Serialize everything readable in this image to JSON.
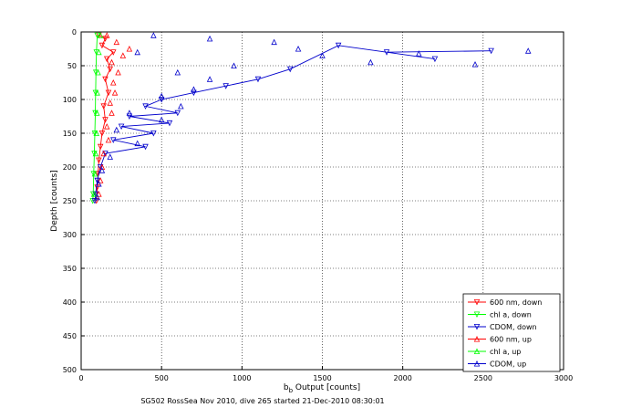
{
  "chart_data": {
    "type": "scatter",
    "title": "",
    "xlabel_main": "b",
    "xlabel_sub": "b",
    "xlabel_rest": " Output [counts]",
    "ylabel": "Depth [counts]",
    "caption": "SG502 RossSea Nov 2010, dive 265 started 21-Dec-2010 08:30:01",
    "xlim": [
      0,
      3000
    ],
    "ylim": [
      500,
      0
    ],
    "y_reversed": true,
    "xticks": [
      0,
      500,
      1000,
      1500,
      2000,
      2500,
      3000
    ],
    "yticks": [
      0,
      50,
      100,
      150,
      200,
      250,
      300,
      350,
      400,
      450,
      500
    ],
    "grid": "dotted",
    "legend_position": "bottom-right",
    "series": [
      {
        "name": "600 nm, down",
        "color": "#ff0000",
        "marker": "triangle-down",
        "connected": true,
        "points": [
          [
            110,
            5
          ],
          [
            150,
            10
          ],
          [
            130,
            20
          ],
          [
            200,
            30
          ],
          [
            160,
            40
          ],
          [
            180,
            55
          ],
          [
            150,
            70
          ],
          [
            170,
            90
          ],
          [
            140,
            110
          ],
          [
            150,
            130
          ],
          [
            130,
            150
          ],
          [
            120,
            170
          ],
          [
            110,
            190
          ],
          [
            105,
            210
          ],
          [
            100,
            230
          ],
          [
            95,
            250
          ]
        ]
      },
      {
        "name": "chl a, down",
        "color": "#00ff00",
        "marker": "triangle-down",
        "connected": true,
        "points": [
          [
            100,
            5
          ],
          [
            95,
            30
          ],
          [
            92,
            60
          ],
          [
            90,
            90
          ],
          [
            88,
            120
          ],
          [
            85,
            150
          ],
          [
            82,
            180
          ],
          [
            78,
            210
          ],
          [
            75,
            240
          ],
          [
            72,
            250
          ]
        ]
      },
      {
        "name": "CDOM, down",
        "color": "#0000cc",
        "marker": "triangle-down",
        "connected": true,
        "points": [
          [
            2550,
            28
          ],
          [
            1900,
            30
          ],
          [
            2200,
            40
          ],
          [
            1600,
            20
          ],
          [
            1300,
            55
          ],
          [
            1100,
            70
          ],
          [
            900,
            80
          ],
          [
            700,
            90
          ],
          [
            500,
            100
          ],
          [
            400,
            110
          ],
          [
            600,
            120
          ],
          [
            300,
            125
          ],
          [
            550,
            135
          ],
          [
            250,
            140
          ],
          [
            450,
            150
          ],
          [
            200,
            160
          ],
          [
            400,
            170
          ],
          [
            150,
            180
          ],
          [
            120,
            200
          ],
          [
            100,
            220
          ],
          [
            90,
            240
          ],
          [
            85,
            250
          ]
        ]
      },
      {
        "name": "600 nm, up",
        "color": "#ff0000",
        "marker": "triangle-up",
        "connected": false,
        "points": [
          [
            160,
            5
          ],
          [
            220,
            15
          ],
          [
            300,
            25
          ],
          [
            260,
            35
          ],
          [
            190,
            45
          ],
          [
            230,
            60
          ],
          [
            200,
            75
          ],
          [
            210,
            90
          ],
          [
            180,
            105
          ],
          [
            190,
            120
          ],
          [
            160,
            140
          ],
          [
            170,
            160
          ],
          [
            140,
            180
          ],
          [
            130,
            200
          ],
          [
            120,
            220
          ],
          [
            110,
            240
          ]
        ]
      },
      {
        "name": "chl a, up",
        "color": "#00ff00",
        "marker": "triangle-up",
        "connected": false,
        "points": [
          [
            120,
            5
          ],
          [
            110,
            30
          ],
          [
            105,
            60
          ],
          [
            100,
            90
          ],
          [
            98,
            120
          ],
          [
            95,
            150
          ],
          [
            90,
            180
          ],
          [
            85,
            210
          ],
          [
            80,
            240
          ]
        ]
      },
      {
        "name": "CDOM, up",
        "color": "#0000cc",
        "marker": "triangle-up",
        "connected": false,
        "points": [
          [
            2780,
            28
          ],
          [
            2450,
            48
          ],
          [
            2100,
            32
          ],
          [
            1800,
            45
          ],
          [
            1500,
            35
          ],
          [
            1350,
            25
          ],
          [
            1200,
            15
          ],
          [
            950,
            50
          ],
          [
            800,
            70
          ],
          [
            600,
            60
          ],
          [
            700,
            85
          ],
          [
            500,
            95
          ],
          [
            450,
            5
          ],
          [
            800,
            10
          ],
          [
            350,
            30
          ],
          [
            620,
            110
          ],
          [
            300,
            120
          ],
          [
            500,
            130
          ],
          [
            220,
            145
          ],
          [
            350,
            165
          ],
          [
            180,
            185
          ],
          [
            130,
            205
          ],
          [
            110,
            225
          ],
          [
            100,
            245
          ]
        ]
      }
    ]
  }
}
